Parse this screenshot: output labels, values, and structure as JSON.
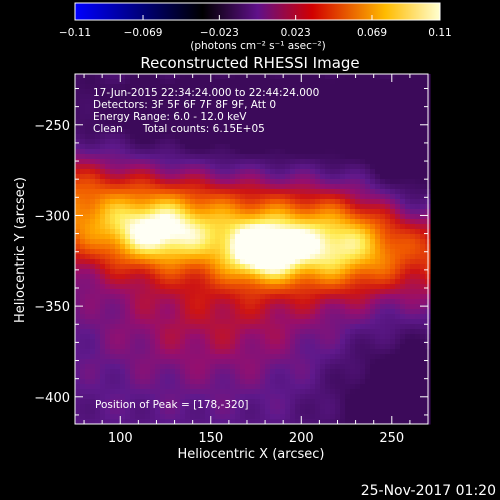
{
  "colorbar": {
    "ticks": [
      "-0.11",
      "-0.069",
      "-0.023",
      "0.023",
      "0.069",
      "0.11"
    ],
    "tick_values": [
      -0.11,
      -0.069,
      -0.023,
      0.023,
      0.069,
      0.11
    ],
    "range": [
      -0.11,
      0.11
    ],
    "units": "(photons cm⁻² s⁻¹ asec⁻²)"
  },
  "annotations": {
    "time": "17-Jun-2015 22:34:24.000 to 22:44:24.000",
    "detectors": "Detectors: 3F 5F 6F 7F 8F 9F, Att 0",
    "energy": "Energy Range: 6.0 - 12.0 keV",
    "clean": "Clean      Total counts: 6.15E+05",
    "peak": "Position of Peak = [178,-320]"
  },
  "footer": {
    "date": "25-Nov-2017 01:20"
  },
  "chart_data": {
    "type": "heatmap",
    "title": "Reconstructed RHESSI Image",
    "xlabel": "Heliocentric X (arcsec)",
    "ylabel": "Heliocentric Y (arcsec)",
    "xlim": [
      75,
      270
    ],
    "ylim": [
      -415,
      -222
    ],
    "x_ticks": [
      100,
      150,
      200,
      250
    ],
    "y_ticks": [
      -250,
      -300,
      -350,
      -400
    ],
    "x_tick_labels": [
      "100",
      "150",
      "200",
      "250"
    ],
    "y_tick_labels": [
      "−250",
      "−300",
      "−350",
      "−400"
    ],
    "peak": [
      178,
      -320
    ],
    "colormap": "rhessi",
    "colorbar_colors": [
      "#0000ff",
      "#000000",
      "#7f00ff",
      "#ff0000",
      "#ffff00",
      "#ffffff"
    ]
  }
}
